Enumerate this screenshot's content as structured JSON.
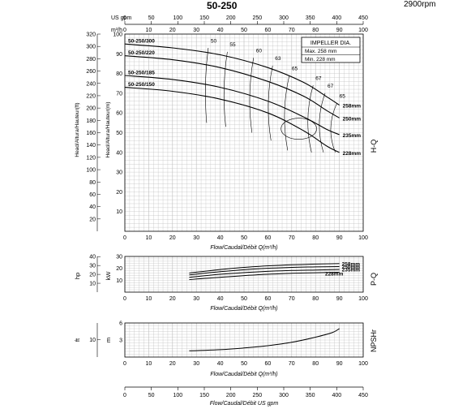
{
  "header": {
    "title": "50-250",
    "speed": "2900rpm"
  },
  "chart_data": [
    {
      "type": "line",
      "name": "H-Q",
      "side_label": "H-Q",
      "x_top_unit": "US gpm",
      "x_top_ticks": [
        0,
        50,
        100,
        150,
        200,
        250,
        300,
        350,
        400,
        450
      ],
      "x_top_max": 450,
      "x_mid_unit": "m³/h",
      "xlim": [
        0,
        100
      ],
      "xticks": [
        0,
        10,
        20,
        30,
        40,
        50,
        60,
        70,
        80,
        90,
        100
      ],
      "xlabel": "Flow/Caudal/Débit Q(m³/h)",
      "ylabel_m": "Head/Altura/Hauteur(m)",
      "ylabel_ft": "Head/Altura/Hauteur(ft)",
      "ylim_m": [
        0,
        100
      ],
      "ytick_m": [
        10,
        20,
        30,
        40,
        50,
        60,
        70,
        80,
        90,
        100
      ],
      "ylim_ft": [
        0,
        320
      ],
      "ytick_ft": [
        20,
        40,
        60,
        80,
        100,
        120,
        140,
        160,
        180,
        200,
        220,
        240,
        260,
        280,
        300,
        320
      ],
      "legend": {
        "title": "IMPELLER DIA.",
        "rows": [
          "Max.  258 mm",
          "Min.   228 mm"
        ]
      },
      "series": [
        {
          "name": "258mm",
          "x": [
            0,
            20,
            40,
            60,
            75,
            85,
            90
          ],
          "y": [
            95,
            93,
            89.5,
            83,
            75.5,
            68,
            64
          ]
        },
        {
          "name": "250mm",
          "x": [
            0,
            20,
            40,
            60,
            75,
            85,
            90
          ],
          "y": [
            89,
            87,
            83,
            76,
            68.5,
            61,
            57.5
          ]
        },
        {
          "name": "235mm",
          "x": [
            0,
            20,
            40,
            60,
            75,
            85,
            90
          ],
          "y": [
            79,
            77,
            73,
            66,
            58,
            51.5,
            49
          ]
        },
        {
          "name": "228mm",
          "x": [
            0,
            20,
            40,
            60,
            75,
            85,
            90
          ],
          "y": [
            73,
            71,
            67,
            60,
            51,
            43,
            40
          ]
        }
      ],
      "curve_tags": [
        "50-250/300",
        "50-250/220",
        "50-250/185",
        "50-250/150"
      ],
      "efficiency_labels": [
        {
          "text": "50",
          "x": 35,
          "y": 97
        },
        {
          "text": "55",
          "x": 43,
          "y": 95
        },
        {
          "text": "60",
          "x": 54,
          "y": 92
        },
        {
          "text": "63",
          "x": 62,
          "y": 88
        },
        {
          "text": "65",
          "x": 69,
          "y": 83
        },
        {
          "text": "67",
          "x": 79,
          "y": 78
        },
        {
          "text": "67",
          "x": 84,
          "y": 74
        },
        {
          "text": "65",
          "x": 89,
          "y": 69
        }
      ]
    },
    {
      "type": "line",
      "name": "P-Q",
      "side_label": "P-Q",
      "ylabel_kw": "kW",
      "ylabel_hp": "hp",
      "ylim_kw": [
        0,
        30
      ],
      "ytick_kw": [
        10,
        20,
        30
      ],
      "ylim_hp": [
        0,
        40.2
      ],
      "ytick_hp": [
        10,
        20,
        30,
        40
      ],
      "xlim": [
        0,
        100
      ],
      "xticks": [
        0,
        10,
        20,
        30,
        40,
        50,
        60,
        70,
        80,
        90,
        100
      ],
      "xlabel": "Flow/Caudal/Débit Q(m³/h)",
      "series": [
        {
          "name": "258mm",
          "x": [
            27,
            40,
            55,
            70,
            80,
            90
          ],
          "y": [
            16,
            19,
            21.5,
            23,
            23.6,
            24
          ]
        },
        {
          "name": "250mm",
          "x": [
            27,
            40,
            55,
            70,
            80,
            90
          ],
          "y": [
            14.5,
            17.2,
            19.5,
            20.8,
            21.2,
            21.5
          ]
        },
        {
          "name": "235mm",
          "x": [
            27,
            40,
            55,
            70,
            80,
            90
          ],
          "y": [
            12.5,
            15,
            17,
            18.2,
            18.6,
            19
          ]
        },
        {
          "name": "228mm",
          "x": [
            27,
            40,
            55,
            70,
            80,
            90
          ],
          "y": [
            10.5,
            12.5,
            14.5,
            15.8,
            16.3,
            16.7
          ]
        }
      ]
    },
    {
      "type": "line",
      "name": "NPSHr",
      "side_label": "NPSHr",
      "ylabel_m": "m",
      "ylabel_ft": "ft",
      "ylim_m": [
        0,
        6
      ],
      "ytick_m": [
        3,
        6
      ],
      "ylim_ft": [
        0,
        19.7
      ],
      "ytick_ft": [
        10
      ],
      "xlim_gpm": [
        0,
        450
      ],
      "xticks_gpm": [
        0,
        50,
        100,
        150,
        200,
        250,
        300,
        350,
        400,
        450
      ],
      "xlabel": "Flow/Caudal/Débit  US gpm",
      "series": [
        {
          "name": "NPSHr",
          "x": [
            27,
            40,
            50,
            60,
            70,
            80,
            87,
            90
          ],
          "y": [
            1.1,
            1.3,
            1.6,
            2,
            2.6,
            3.5,
            4.3,
            5
          ]
        }
      ]
    }
  ]
}
